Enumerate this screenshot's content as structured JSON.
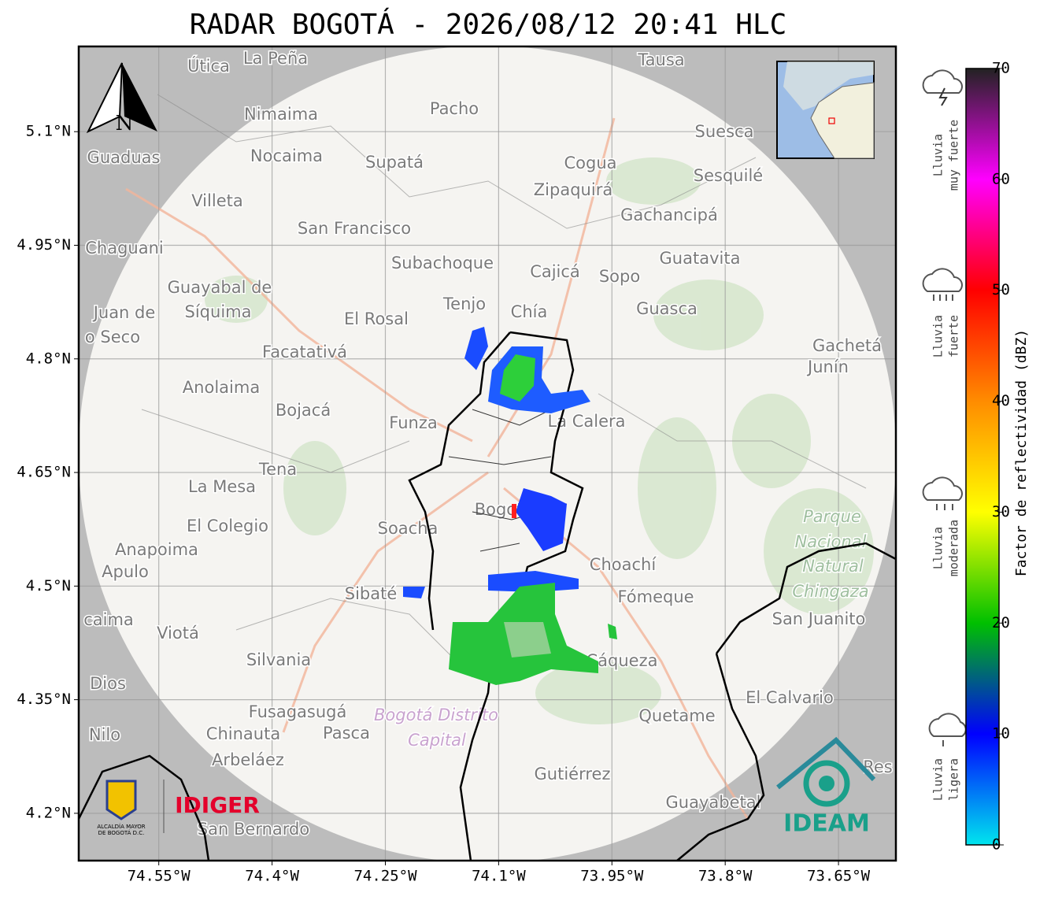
{
  "chart_data": {
    "type": "radar-map",
    "title": "RADAR BOGOTÁ - 2026/08/12 20:41 HLC",
    "xlim": [
      -74.656,
      -73.574
    ],
    "ylim": [
      4.1375,
      5.2125
    ],
    "xticks": [
      {
        "value": -74.55,
        "label": "74.55°W"
      },
      {
        "value": -74.4,
        "label": "74.4°W"
      },
      {
        "value": -74.25,
        "label": "74.25°W"
      },
      {
        "value": -74.1,
        "label": "74.1°W"
      },
      {
        "value": -73.95,
        "label": "73.95°W"
      },
      {
        "value": -73.8,
        "label": "73.8°W"
      },
      {
        "value": -73.65,
        "label": "73.65°W"
      }
    ],
    "yticks": [
      {
        "value": 5.1,
        "label": "5.1°N"
      },
      {
        "value": 4.95,
        "label": "4.95°N"
      },
      {
        "value": 4.8,
        "label": "4.8°N"
      },
      {
        "value": 4.65,
        "label": "4.65°N"
      },
      {
        "value": 4.5,
        "label": "4.5°N"
      },
      {
        "value": 4.35,
        "label": "4.35°N"
      },
      {
        "value": 4.2,
        "label": "4.2°N"
      }
    ],
    "grid": true,
    "colorbar": {
      "label": "Factor de reflectividad (dBZ)",
      "lim": [
        0,
        70
      ],
      "ticks": [
        0,
        10,
        20,
        30,
        40,
        50,
        60,
        70
      ],
      "colors": [
        "#00e5ee",
        "#0000ff",
        "#00c000",
        "#ffff00",
        "#ff8c00",
        "#ff0000",
        "#ff00ff",
        "#222222"
      ]
    },
    "rain_levels": [
      [
        "Lluvia",
        "muy fuerte"
      ],
      [
        "Lluvia",
        "fuerte"
      ],
      [
        "Lluvia",
        "moderada"
      ],
      [
        "Lluvia",
        "ligera"
      ]
    ],
    "north": "N",
    "logos": [
      "ALCALDÍA MAYOR",
      "DE BOGOTÁ D.C.",
      "IDIGER",
      "IDEAM"
    ],
    "places": [
      "La Peña",
      "Útica",
      "Tausa",
      "Pacho",
      "Nimaima",
      "Guaduas",
      "Nocaima",
      "Supatá",
      "Cogua",
      "Suesca",
      "Sesquilé",
      "Zipaquirá",
      "Villeta",
      "Gachancipá",
      "San Francisco",
      "Chaguani",
      "Guatavita",
      "Subachoque",
      "Cajicá",
      "Sopo",
      "Guayabal de",
      "Síquima",
      "Tenjo",
      "Chía",
      "Guasca",
      "Juan de",
      "o Seco",
      "El Rosal",
      "Facatativá",
      "Gachetá",
      "Junín",
      "Anolaima",
      "Bojacá",
      "Funza",
      "La Calera",
      "Tena",
      "La Mesa",
      "Bogotá",
      "El Colegio",
      "Soacha",
      "Anapoima",
      "Apulo",
      "Choachí",
      "Sibaté",
      "Fómeque",
      "San Juanito",
      "caima",
      "Viotá",
      "Cáqueza",
      "Silvania",
      "Dios",
      "El Calvario",
      "Fusagasugá",
      "Quetame",
      "Nilo",
      "Chinauta",
      "Pasca",
      "Arbeláez",
      "Gutiérrez",
      "Res",
      "Guayabetal",
      "San Bernardo",
      "Bogotá Distrito",
      "Capital",
      "Parque",
      "Nacional",
      "Natural",
      "Chingaza"
    ]
  }
}
